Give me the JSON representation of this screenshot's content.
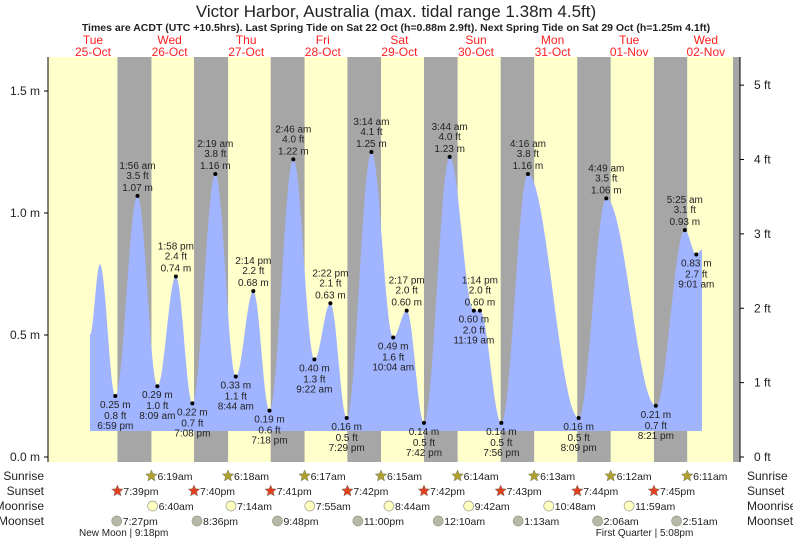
{
  "chart_data": {
    "type": "area",
    "title": "Victor Harbor, Australia (max. tidal range 1.38m 4.5ft)",
    "subtitle": "Times are ACDT (UTC +10.5hrs). Last Spring Tide on Sat 22 Oct (h=0.88m 2.9ft). Next Spring Tide on Sat 29 Oct (h=1.25m 4.1ft)",
    "ylim_m": [
      0,
      1.65
    ],
    "y_ticks_left": [
      {
        "v": 0.0,
        "label": "0.0 m"
      },
      {
        "v": 0.5,
        "label": "0.5 m"
      },
      {
        "v": 1.0,
        "label": "1.0 m"
      },
      {
        "v": 1.5,
        "label": "1.5 m"
      }
    ],
    "y_ticks_right": [
      {
        "ft": 0,
        "label": "0 ft"
      },
      {
        "ft": 1,
        "label": "1 ft"
      },
      {
        "ft": 2,
        "label": "2 ft"
      },
      {
        "ft": 3,
        "label": "3 ft"
      },
      {
        "ft": 4,
        "label": "4 ft"
      },
      {
        "ft": 5,
        "label": "5 ft"
      }
    ],
    "days": [
      {
        "dow": "Tue",
        "date": "25-Oct"
      },
      {
        "dow": "Wed",
        "date": "26-Oct"
      },
      {
        "dow": "Thu",
        "date": "27-Oct"
      },
      {
        "dow": "Fri",
        "date": "28-Oct"
      },
      {
        "dow": "Sat",
        "date": "29-Oct"
      },
      {
        "dow": "Sun",
        "date": "30-Oct"
      },
      {
        "dow": "Mon",
        "date": "31-Oct"
      },
      {
        "dow": "Tue",
        "date": "01-Nov"
      },
      {
        "dow": "Wed",
        "date": "02-Nov"
      }
    ],
    "x_unit": "days since 25-Oct 00:00",
    "curve_start": {
      "t": 0.46,
      "h": 0.5
    },
    "unlabeled_extrema": [
      {
        "t": 0.59,
        "h": 0.79
      }
    ],
    "curve_end": {
      "t": 8.45,
      "h": 0.85
    },
    "tides": [
      {
        "type": "low",
        "t": 0.791,
        "m": "0.25 m",
        "ft": "0.8 ft",
        "time": "6:59 pm",
        "h": 0.25
      },
      {
        "type": "high",
        "t": 1.081,
        "m": "1.07 m",
        "ft": "3.5 ft",
        "time": "1:56 am",
        "h": 1.07
      },
      {
        "type": "low",
        "t": 1.34,
        "m": "0.29 m",
        "ft": "1.0 ft",
        "time": "8:09 am",
        "h": 0.29
      },
      {
        "type": "high",
        "t": 1.582,
        "m": "0.74 m",
        "ft": "2.4 ft",
        "time": "1:58 pm",
        "h": 0.74
      },
      {
        "type": "low",
        "t": 1.797,
        "m": "0.22 m",
        "ft": "0.7 ft",
        "time": "7:08 pm",
        "h": 0.22
      },
      {
        "type": "high",
        "t": 2.097,
        "m": "1.16 m",
        "ft": "3.8 ft",
        "time": "2:19 am",
        "h": 1.16
      },
      {
        "type": "low",
        "t": 2.364,
        "m": "0.33 m",
        "ft": "1.1 ft",
        "time": "8:44 am",
        "h": 0.33
      },
      {
        "type": "high",
        "t": 2.593,
        "m": "0.68 m",
        "ft": "2.2 ft",
        "time": "2:14 pm",
        "h": 0.68
      },
      {
        "type": "low",
        "t": 2.804,
        "m": "0.19 m",
        "ft": "0.6 ft",
        "time": "7:18 pm",
        "h": 0.19
      },
      {
        "type": "high",
        "t": 3.115,
        "m": "1.22 m",
        "ft": "4.0 ft",
        "time": "2:46 am",
        "h": 1.22
      },
      {
        "type": "low",
        "t": 3.39,
        "m": "0.40 m",
        "ft": "1.3 ft",
        "time": "9:22 am",
        "h": 0.4
      },
      {
        "type": "high",
        "t": 3.599,
        "m": "0.63 m",
        "ft": "2.1 ft",
        "time": "2:22 pm",
        "h": 0.63
      },
      {
        "type": "low",
        "t": 3.812,
        "m": "0.16 m",
        "ft": "0.5 ft",
        "time": "7:29 pm",
        "h": 0.16
      },
      {
        "type": "high",
        "t": 4.135,
        "m": "1.25 m",
        "ft": "4.1 ft",
        "time": "3:14 am",
        "h": 1.25
      },
      {
        "type": "low",
        "t": 4.419,
        "m": "0.49 m",
        "ft": "1.6 ft",
        "time": "10:04 am",
        "h": 0.49
      },
      {
        "type": "high",
        "t": 4.595,
        "m": "0.60 m",
        "ft": "2.0 ft",
        "time": "2:17 pm",
        "h": 0.6
      },
      {
        "type": "low",
        "t": 4.821,
        "m": "0.14 m",
        "ft": "0.5 ft",
        "time": "7:42 pm",
        "h": 0.14
      },
      {
        "type": "high",
        "t": 5.156,
        "m": "1.23 m",
        "ft": "4.0 ft",
        "time": "3:44 am",
        "h": 1.23
      },
      {
        "type": "low",
        "t": 5.472,
        "m": "0.60 m",
        "ft": "2.0 ft",
        "time": "11:19 am",
        "h": 0.6
      },
      {
        "type": "high",
        "t": 5.551,
        "m": "0.60 m",
        "ft": "2.0 ft",
        "time": "1:14 pm",
        "h": 0.6
      },
      {
        "type": "low",
        "t": 5.831,
        "m": "0.14 m",
        "ft": "0.5 ft",
        "time": "7:56 pm",
        "h": 0.14
      },
      {
        "type": "high",
        "t": 6.178,
        "m": "1.16 m",
        "ft": "3.8 ft",
        "time": "4:16 am",
        "h": 1.16
      },
      {
        "type": "low",
        "t": 6.84,
        "m": "0.16 m",
        "ft": "0.5 ft",
        "time": "8:09 pm",
        "h": 0.16
      },
      {
        "type": "high",
        "t": 7.201,
        "m": "1.06 m",
        "ft": "3.5 ft",
        "time": "4:49 am",
        "h": 1.06
      },
      {
        "type": "low",
        "t": 7.848,
        "m": "0.21 m",
        "ft": "0.7 ft",
        "time": "8:21 pm",
        "h": 0.21
      },
      {
        "type": "high",
        "t": 8.226,
        "m": "0.93 m",
        "ft": "3.1 ft",
        "time": "5:25 am",
        "h": 0.93
      },
      {
        "type": "low",
        "t": 8.376,
        "m": "0.83 m",
        "ft": "2.7 ft",
        "time": "9:01 am",
        "h": 0.83
      }
    ],
    "row_labels": {
      "sunrise": "Sunrise",
      "sunset": "Sunset",
      "moonrise": "Moonrise",
      "moonset": "Moonset"
    },
    "sunrise": [
      {
        "t": 1.263,
        "time": "6:19am"
      },
      {
        "t": 2.263,
        "time": "6:18am"
      },
      {
        "t": 3.262,
        "time": "6:17am"
      },
      {
        "t": 4.26,
        "time": "6:15am"
      },
      {
        "t": 5.26,
        "time": "6:14am"
      },
      {
        "t": 6.259,
        "time": "6:13am"
      },
      {
        "t": 7.258,
        "time": "6:12am"
      },
      {
        "t": 8.257,
        "time": "6:11am"
      }
    ],
    "sunset": [
      {
        "t": 0.819,
        "time": "7:39pm"
      },
      {
        "t": 1.819,
        "time": "7:40pm"
      },
      {
        "t": 2.82,
        "time": "7:41pm"
      },
      {
        "t": 3.821,
        "time": "7:42pm"
      },
      {
        "t": 4.821,
        "time": "7:42pm"
      },
      {
        "t": 5.822,
        "time": "7:43pm"
      },
      {
        "t": 6.822,
        "time": "7:44pm"
      },
      {
        "t": 7.823,
        "time": "7:45pm"
      }
    ],
    "moonrise": [
      {
        "t": 1.278,
        "time": "6:40am"
      },
      {
        "t": 2.301,
        "time": "7:14am"
      },
      {
        "t": 3.33,
        "time": "7:55am"
      },
      {
        "t": 4.364,
        "time": "8:44am"
      },
      {
        "t": 5.404,
        "time": "9:42am"
      },
      {
        "t": 6.45,
        "time": "10:48am"
      },
      {
        "t": 7.499,
        "time": "11:59am"
      }
    ],
    "moonset": [
      {
        "t": 0.81,
        "time": "7:27pm"
      },
      {
        "t": 1.858,
        "time": "8:36pm"
      },
      {
        "t": 2.908,
        "time": "9:48pm"
      },
      {
        "t": 3.958,
        "time": "11:00pm"
      },
      {
        "t": 5.007,
        "time": "12:10am"
      },
      {
        "t": 6.051,
        "time": "1:13am"
      },
      {
        "t": 7.088,
        "time": "2:06am"
      },
      {
        "t": 8.119,
        "time": "2:51am"
      }
    ],
    "moon_phases": [
      {
        "t": 0.9,
        "label": "New Moon | 9:18pm"
      },
      {
        "t": 7.7,
        "label": "First Quarter | 5:08pm"
      }
    ],
    "colors": {
      "day": "#ffffcc",
      "night": "#a6a6a6",
      "water": "#a0b4ff",
      "date": "#ff2020",
      "sunrise": "#b0a030",
      "sunset": "#e04020",
      "moonrise": "#ffffc0",
      "moonset": "#b8b8a8"
    }
  }
}
